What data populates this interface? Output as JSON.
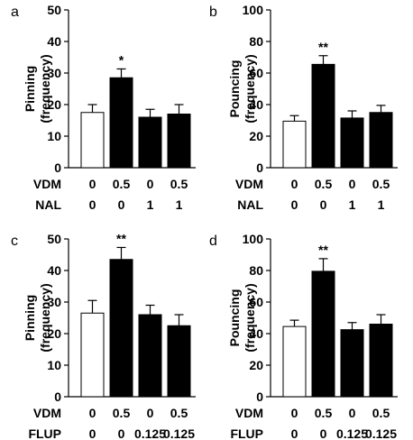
{
  "chart_data": [
    {
      "type": "bar",
      "panel_label": "a",
      "ylabel": [
        "Pinning",
        "(frequency)"
      ],
      "ylim": [
        0,
        50
      ],
      "yticks": [
        "0",
        "10",
        "20",
        "30",
        "40",
        "50"
      ],
      "values": [
        17.5,
        28.5,
        16,
        17
      ],
      "errors": [
        2.5,
        2.8,
        2.5,
        3
      ],
      "bar_fills": [
        "#ffffff",
        "#000000",
        "#000000",
        "#000000"
      ],
      "significance": [
        "",
        "*",
        "",
        ""
      ],
      "factor_rows": [
        {
          "label": "VDM",
          "values": [
            "0",
            "0.5",
            "0",
            "0.5"
          ]
        },
        {
          "label": "NAL",
          "values": [
            "0",
            "0",
            "1",
            "1"
          ]
        }
      ]
    },
    {
      "type": "bar",
      "panel_label": "b",
      "ylabel": [
        "Pouncing",
        "(frequency)"
      ],
      "ylim": [
        0,
        100
      ],
      "yticks": [
        "0",
        "20",
        "40",
        "60",
        "80",
        "100"
      ],
      "values": [
        29.5,
        65.5,
        31.5,
        35
      ],
      "errors": [
        3.5,
        5.5,
        4.5,
        4.5
      ],
      "bar_fills": [
        "#ffffff",
        "#000000",
        "#000000",
        "#000000"
      ],
      "significance": [
        "",
        "**",
        "",
        ""
      ],
      "factor_rows": [
        {
          "label": "VDM",
          "values": [
            "0",
            "0.5",
            "0",
            "0.5"
          ]
        },
        {
          "label": "NAL",
          "values": [
            "0",
            "0",
            "1",
            "1"
          ]
        }
      ]
    },
    {
      "type": "bar",
      "panel_label": "c",
      "ylabel": [
        "Pinning",
        "(frequency)"
      ],
      "ylim": [
        0,
        50
      ],
      "yticks": [
        "0",
        "10",
        "20",
        "30",
        "40",
        "50"
      ],
      "values": [
        26.5,
        43.5,
        26,
        22.5
      ],
      "errors": [
        4,
        3.8,
        3,
        3.5
      ],
      "bar_fills": [
        "#ffffff",
        "#000000",
        "#000000",
        "#000000"
      ],
      "significance": [
        "",
        "**",
        "",
        ""
      ],
      "factor_rows": [
        {
          "label": "VDM",
          "values": [
            "0",
            "0.5",
            "0",
            "0.5"
          ]
        },
        {
          "label": "FLUP",
          "values": [
            "0",
            "0",
            "0.125",
            "0.125"
          ]
        }
      ]
    },
    {
      "type": "bar",
      "panel_label": "d",
      "ylabel": [
        "Pouncing",
        "(frequency)"
      ],
      "ylim": [
        0,
        100
      ],
      "yticks": [
        "0",
        "20",
        "40",
        "60",
        "80",
        "100"
      ],
      "values": [
        44.5,
        79.5,
        42.5,
        46
      ],
      "errors": [
        4,
        8,
        4.5,
        6
      ],
      "bar_fills": [
        "#ffffff",
        "#000000",
        "#000000",
        "#000000"
      ],
      "significance": [
        "",
        "**",
        "",
        ""
      ],
      "factor_rows": [
        {
          "label": "VDM",
          "values": [
            "0",
            "0.5",
            "0",
            "0.5"
          ]
        },
        {
          "label": "FLUP",
          "values": [
            "0",
            "0",
            "0.125",
            "0.125"
          ]
        }
      ]
    }
  ]
}
